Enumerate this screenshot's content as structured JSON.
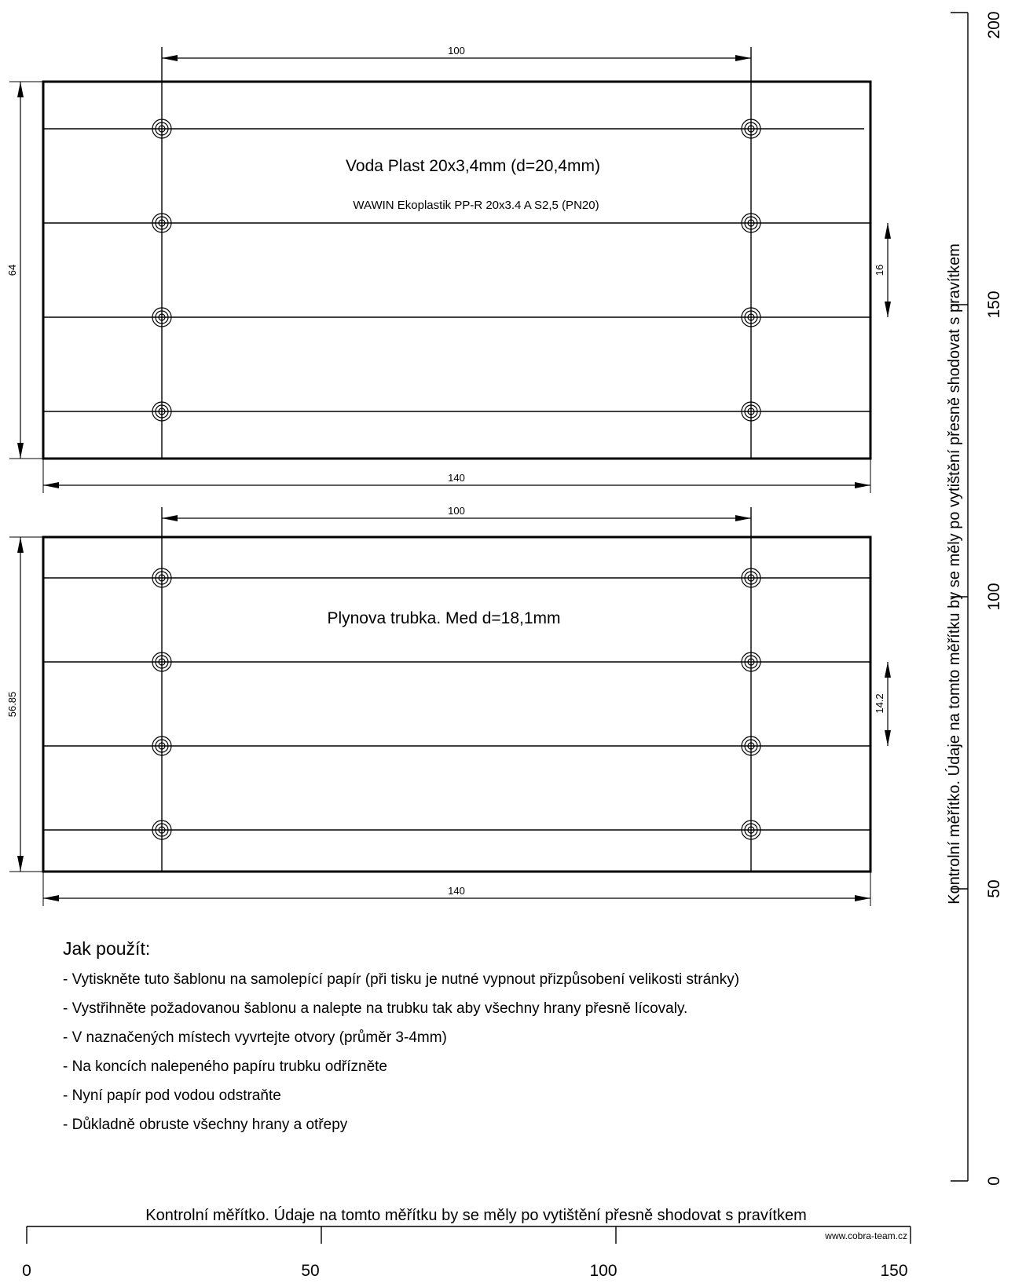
{
  "templates": [
    {
      "title": "Voda Plast 20x3,4mm (d=20,4mm)",
      "subtitle": "WAWIN Ekoplastik PP-R 20x3.4 A S2,5 (PN20)",
      "dim_top": "100",
      "dim_bottom": "140",
      "dim_left": "64",
      "dim_right": "16"
    },
    {
      "title": "Plynova trubka. Med d=18,1mm",
      "subtitle": "",
      "dim_top": "100",
      "dim_bottom": "140",
      "dim_left": "56.85",
      "dim_right": "14.2"
    }
  ],
  "instructions": {
    "heading": "Jak použít:",
    "steps": [
      "Vytiskněte tuto šablonu na samolepící papír (při tisku je nutné vypnout přizpůsobení velikosti stránky)",
      "Vystřihněte požadovanou šablonu a nalepte na trubku tak aby všechny hrany přesně lícovaly.",
      "V naznačených místech vyvrtejte otvory (průměr 3-4mm)",
      "Na koncích nalepeného papíru trubku odřízněte",
      "Nyní papír pod vodou odstraňte",
      "Důkladně obruste všechny hrany a otřepy"
    ]
  },
  "vertical_scale": {
    "caption": "Kontrolní měřítko. Údaje na tomto měřítku by se měly po vytištění přesně shodovat s pravítkem",
    "labels": [
      "0",
      "50",
      "100",
      "150",
      "200"
    ]
  },
  "horizontal_scale": {
    "caption": "Kontrolní měřítko. Údaje na tomto měřítku by se měly po vytištění přesně shodovat s pravítkem",
    "labels": [
      "0",
      "50",
      "100",
      "150"
    ],
    "website": "www.cobra-team.cz"
  }
}
